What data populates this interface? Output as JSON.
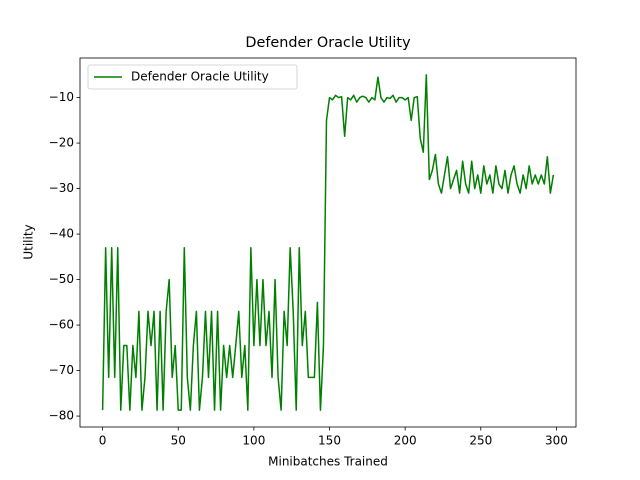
{
  "chart_data": {
    "type": "line",
    "title": "Defender Oracle Utility",
    "xlabel": "Minibatches Trained",
    "ylabel": "Utility",
    "legend": "upper left",
    "xlim": [
      -14.95,
      312.95
    ],
    "ylim": [
      -82.4,
      -1.3
    ],
    "xticks": [
      0,
      50,
      100,
      150,
      200,
      250,
      300
    ],
    "yticks": [
      {
        "value": -80,
        "label": "−80"
      },
      {
        "value": -70,
        "label": "−70"
      },
      {
        "value": -60,
        "label": "−60"
      },
      {
        "value": -50,
        "label": "−50"
      },
      {
        "value": -40,
        "label": "−40"
      },
      {
        "value": -30,
        "label": "−30"
      },
      {
        "value": -20,
        "label": "−20"
      },
      {
        "value": -10,
        "label": "−10"
      }
    ],
    "x": [
      0,
      2,
      4,
      6,
      8,
      10,
      12,
      14,
      16,
      18,
      20,
      22,
      24,
      26,
      28,
      30,
      32,
      34,
      36,
      38,
      40,
      42,
      44,
      46,
      48,
      50,
      52,
      54,
      56,
      58,
      60,
      62,
      64,
      66,
      68,
      70,
      72,
      74,
      76,
      78,
      80,
      82,
      84,
      86,
      88,
      90,
      92,
      94,
      96,
      98,
      100,
      102,
      104,
      106,
      108,
      110,
      112,
      114,
      116,
      118,
      120,
      122,
      124,
      126,
      128,
      130,
      132,
      134,
      136,
      138,
      140,
      142,
      144,
      146,
      148,
      150,
      152,
      154,
      156,
      158,
      160,
      162,
      164,
      166,
      168,
      170,
      172,
      174,
      176,
      178,
      180,
      182,
      184,
      186,
      188,
      190,
      192,
      194,
      196,
      198,
      200,
      202,
      204,
      206,
      208,
      210,
      212,
      214,
      216,
      218,
      220,
      222,
      224,
      226,
      228,
      230,
      232,
      234,
      236,
      238,
      240,
      242,
      244,
      246,
      248,
      250,
      252,
      254,
      256,
      258,
      260,
      262,
      264,
      266,
      268,
      270,
      272,
      274,
      276,
      278,
      280,
      282,
      284,
      286,
      288,
      290,
      292,
      294,
      296,
      298
    ],
    "series": [
      {
        "name": "Defender Oracle Utility",
        "color": "#008000",
        "values": [
          -78.7,
          -43,
          -71.5,
          -43,
          -71.5,
          -43,
          -78.7,
          -64.5,
          -64.5,
          -78.7,
          -64.5,
          -71.5,
          -57,
          -78.7,
          -71.5,
          -57,
          -64.5,
          -57,
          -78.7,
          -57,
          -78.7,
          -57,
          -50,
          -71.5,
          -64.5,
          -78.7,
          -78.7,
          -43,
          -71.5,
          -78.7,
          -64.5,
          -57,
          -78.7,
          -71.5,
          -57,
          -71.5,
          -57,
          -78.7,
          -57,
          -78.7,
          -64.5,
          -71.5,
          -64.5,
          -71.5,
          -64.5,
          -57,
          -71.5,
          -64.5,
          -78.7,
          -43,
          -64.5,
          -50,
          -64.5,
          -50,
          -64.5,
          -57,
          -71.5,
          -50,
          -71.5,
          -78.7,
          -57,
          -64.5,
          -43,
          -57,
          -78.7,
          -43,
          -64.5,
          -57,
          -71.5,
          -71.5,
          -71.5,
          -55,
          -78.7,
          -64.5,
          -15,
          -10,
          -10.5,
          -9.5,
          -10,
          -9.8,
          -18.5,
          -10,
          -10.5,
          -9.5,
          -11,
          -10,
          -9.7,
          -10,
          -11,
          -10,
          -10.5,
          -5.5,
          -10,
          -11,
          -10,
          -10.2,
          -9.5,
          -11,
          -10,
          -10,
          -10.5,
          -10,
          -15,
          -10,
          -9.8,
          -19,
          -22,
          -5,
          -28,
          -26,
          -22.5,
          -29,
          -31,
          -27,
          -23,
          -30,
          -28,
          -26,
          -31,
          -24,
          -29,
          -31,
          -24,
          -30,
          -27,
          -31,
          -25,
          -29,
          -27,
          -31,
          -25,
          -29,
          -30,
          -26,
          -31,
          -27,
          -25,
          -29,
          -31,
          -27,
          -30,
          -25,
          -29,
          -27,
          -29,
          -27,
          -29,
          -23,
          -31,
          -27
        ]
      }
    ]
  }
}
